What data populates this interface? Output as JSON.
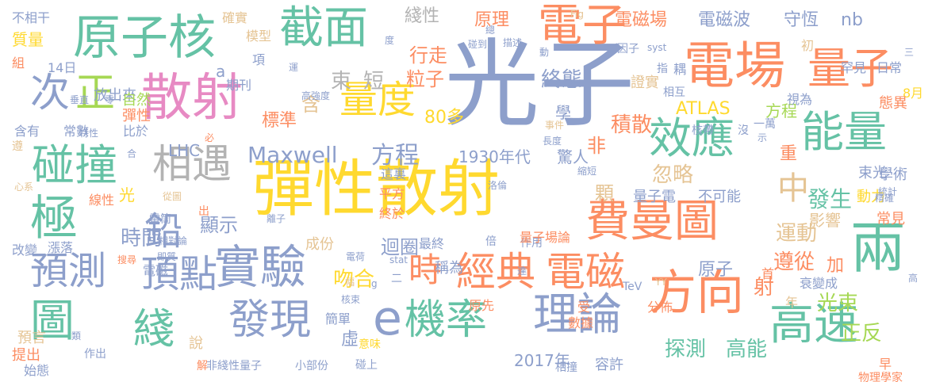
{
  "words": [
    {
      "text": "光子",
      "c": "#8d9fcb"
    },
    {
      "text": "彈性散射",
      "c": "#ffd92f"
    },
    {
      "text": "散射",
      "c": "#e78ac3"
    },
    {
      "text": "電場",
      "c": "#fc8d62"
    },
    {
      "text": "量子",
      "c": "#fc8d62"
    },
    {
      "text": "原子核",
      "c": "#65c2a5"
    },
    {
      "text": "截面",
      "c": "#65c2a5"
    },
    {
      "text": "電子",
      "c": "#fc8d62"
    },
    {
      "text": "費曼圖",
      "c": "#fc8d62"
    },
    {
      "text": "實驗",
      "c": "#8d9fcb"
    },
    {
      "text": "經典",
      "c": "#fc8d62"
    },
    {
      "text": "電磁",
      "c": "#fc8d62"
    },
    {
      "text": "效應",
      "c": "#65c2a5"
    },
    {
      "text": "能量",
      "c": "#65c2a5"
    },
    {
      "text": "兩",
      "c": "#65c2a5"
    },
    {
      "text": "方向",
      "c": "#fc8d62"
    },
    {
      "text": "理論",
      "c": "#8d9fcb"
    },
    {
      "text": "高速",
      "c": "#65c2a5"
    },
    {
      "text": "機率",
      "c": "#65c2a5"
    },
    {
      "text": "發現",
      "c": "#8d9fcb"
    },
    {
      "text": "預測",
      "c": "#8d9fcb"
    },
    {
      "text": "圖",
      "c": "#65c2a5"
    },
    {
      "text": "綫",
      "c": "#65c2a5"
    },
    {
      "text": "碰撞",
      "c": "#65c2a5"
    },
    {
      "text": "極",
      "c": "#65c2a5"
    },
    {
      "text": "次",
      "c": "#8d9fcb"
    },
    {
      "text": "正",
      "c": "#a6d854"
    },
    {
      "text": "相遇",
      "c": "#b3b3b3"
    },
    {
      "text": "鉛",
      "c": "#8d9fcb"
    },
    {
      "text": "頂點",
      "c": "#8d9fcb"
    },
    {
      "text": "量度",
      "c": "#ffd92f"
    },
    {
      "text": "Maxwell",
      "c": "#8d9fcb"
    },
    {
      "text": "方程",
      "c": "#8d9fcb"
    },
    {
      "text": "中",
      "c": "#e5c494"
    },
    {
      "text": "時",
      "c": "#fc8d62"
    },
    {
      "text": "e",
      "c": "#8d9fcb"
    },
    {
      "text": "電磁場",
      "c": "#fc8d62"
    },
    {
      "text": "電磁波",
      "c": "#8d9fcb"
    },
    {
      "text": "守恆",
      "c": "#8d9fcb"
    },
    {
      "text": "nb",
      "c": "#8d9fcb"
    },
    {
      "text": "綫性",
      "c": "#b3b3b3"
    },
    {
      "text": "原理",
      "c": "#fc8d62"
    },
    {
      "text": "行走",
      "c": "#fc8d62"
    },
    {
      "text": "粒子",
      "c": "#fc8d62"
    },
    {
      "text": "束",
      "c": "#b3b3b3"
    },
    {
      "text": "短",
      "c": "#b3b3b3"
    },
    {
      "text": "終態",
      "c": "#8d9fcb"
    },
    {
      "text": "ATLAS",
      "c": "#ffd92f"
    },
    {
      "text": "LHC",
      "c": "#8d9fcb"
    },
    {
      "text": "積散",
      "c": "#fc8d62"
    },
    {
      "text": "發生",
      "c": "#65c2a5"
    },
    {
      "text": "運動",
      "c": "#e5c494"
    },
    {
      "text": "遵從",
      "c": "#fc8d62"
    },
    {
      "text": "光束",
      "c": "#a6d854"
    },
    {
      "text": "正反",
      "c": "#a6d854"
    },
    {
      "text": "高能",
      "c": "#65c2a5"
    },
    {
      "text": "探測",
      "c": "#65c2a5"
    },
    {
      "text": "吻合",
      "c": "#ffd92f"
    },
    {
      "text": "時間",
      "c": "#8d9fcb"
    },
    {
      "text": "顯示",
      "c": "#8d9fcb"
    },
    {
      "text": "迴圈",
      "c": "#8d9fcb"
    },
    {
      "text": "忽略",
      "c": "#e5c494"
    },
    {
      "text": "1930年代",
      "c": "#8d9fcb"
    },
    {
      "text": "驚人",
      "c": "#8d9fcb"
    },
    {
      "text": "不相干",
      "c": "#8d9fcb"
    },
    {
      "text": "質量",
      "c": "#ffd92f"
    },
    {
      "text": "組",
      "c": "#fc8d62"
    },
    {
      "text": "14日",
      "c": "#8d9fcb"
    },
    {
      "text": "放出來",
      "c": "#8d9fcb"
    },
    {
      "text": "自然",
      "c": "#a6d854"
    },
    {
      "text": "彈性",
      "c": "#fc8d62"
    },
    {
      "text": "含有",
      "c": "#8d9fcb"
    },
    {
      "text": "常數",
      "c": "#8d9fcb"
    },
    {
      "text": "比於",
      "c": "#8d9fcb"
    },
    {
      "text": "期刊",
      "c": "#8d9fcb"
    },
    {
      "text": "模型",
      "c": "#e5c494"
    },
    {
      "text": "確實",
      "c": "#e5c494"
    },
    {
      "text": "項",
      "c": "#8d9fcb"
    },
    {
      "text": "含",
      "c": "#e5c494"
    },
    {
      "text": "標準",
      "c": "#fc8d62"
    },
    {
      "text": "80多",
      "c": "#ffd92f"
    },
    {
      "text": "證實",
      "c": "#e5c494"
    },
    {
      "text": "方程",
      "c": "#a6d854"
    },
    {
      "text": "8月",
      "c": "#ffd92f"
    },
    {
      "text": "日常",
      "c": "#8d9fcb"
    },
    {
      "text": "罕見",
      "c": "#8d9fcb"
    },
    {
      "text": "態異",
      "c": "#fc8d62"
    },
    {
      "text": "影響",
      "c": "#e5c494"
    },
    {
      "text": "束光",
      "c": "#8d9fcb"
    },
    {
      "text": "學術",
      "c": "#8d9fcb"
    },
    {
      "text": "不可能",
      "c": "#8d9fcb"
    },
    {
      "text": "量子電",
      "c": "#8d9fcb"
    },
    {
      "text": "顆",
      "c": "#e5c494"
    },
    {
      "text": "動力",
      "c": "#ffd92f"
    },
    {
      "text": "常見",
      "c": "#fc8d62"
    },
    {
      "text": "原子",
      "c": "#8d9fcb"
    },
    {
      "text": "首",
      "c": "#fc8d62"
    },
    {
      "text": "射",
      "c": "#fc8d62"
    },
    {
      "text": "加",
      "c": "#fc8d62"
    },
    {
      "text": "年",
      "c": "#e5c494"
    },
    {
      "text": "衰變成",
      "c": "#8d9fcb"
    },
    {
      "text": "2017年",
      "c": "#8d9fcb"
    },
    {
      "text": "容許",
      "c": "#8d9fcb"
    },
    {
      "text": "早",
      "c": "#fc8d62"
    },
    {
      "text": "物理學家",
      "c": "#fc8d62"
    },
    {
      "text": "預言",
      "c": "#e5c494"
    },
    {
      "text": "提出",
      "c": "#fc8d62"
    },
    {
      "text": "始態",
      "c": "#8d9fcb"
    },
    {
      "text": "說",
      "c": "#e5c494"
    },
    {
      "text": "線性",
      "c": "#fc8d62"
    },
    {
      "text": "光",
      "c": "#ffd92f"
    },
    {
      "text": "電磁",
      "c": "#8d9fcb"
    },
    {
      "text": "改變",
      "c": "#8d9fcb"
    },
    {
      "text": "漲落",
      "c": "#8d9fcb"
    },
    {
      "text": "成份",
      "c": "#e5c494"
    },
    {
      "text": "最終",
      "c": "#8d9fcb"
    },
    {
      "text": "稱為",
      "c": "#8d9fcb"
    },
    {
      "text": "作用",
      "c": "#8d9fcb"
    },
    {
      "text": "原先",
      "c": "#fc8d62"
    },
    {
      "text": "簡單",
      "c": "#8d9fcb"
    },
    {
      "text": "虛",
      "c": "#8d9fcb"
    },
    {
      "text": "意味",
      "c": "#ffd92f"
    },
    {
      "text": "碰上",
      "c": "#8d9fcb"
    },
    {
      "text": "非綫性量子",
      "c": "#8d9fcb"
    },
    {
      "text": "小部份",
      "c": "#8d9fcb"
    },
    {
      "text": "解",
      "c": "#fc8d62"
    },
    {
      "text": "終於",
      "c": "#fc8d62"
    },
    {
      "text": "平方",
      "c": "#fc8d62"
    },
    {
      "text": "這裏",
      "c": "#8d9fcb"
    },
    {
      "text": "量子場論",
      "c": "#fc8d62"
    },
    {
      "text": "數據",
      "c": "#fc8d62"
    },
    {
      "text": "受",
      "c": "#fc8d62"
    },
    {
      "text": "TeV",
      "c": "#8d9fcb"
    },
    {
      "text": "分佈",
      "c": "#fc8d62"
    },
    {
      "text": "相撞",
      "c": "#8d9fcb"
    },
    {
      "text": "非",
      "c": "#fc8d62"
    },
    {
      "text": "重",
      "c": "#fc8d62"
    },
    {
      "text": "學",
      "c": "#8d9fcb"
    },
    {
      "text": "指",
      "c": "#8d9fcb"
    },
    {
      "text": "耦",
      "c": "#8d9fcb"
    },
    {
      "text": "相互",
      "c": "#8d9fcb"
    },
    {
      "text": "初",
      "c": "#e5c494"
    },
    {
      "text": "視為",
      "c": "#8d9fcb"
    },
    {
      "text": "一萬",
      "c": "#8d9fcb"
    },
    {
      "text": "核帶",
      "c": "#8d9fcb"
    },
    {
      "text": "沒",
      "c": "#8d9fcb"
    },
    {
      "text": "因子",
      "c": "#8d9fcb"
    },
    {
      "text": "syst",
      "c": "#8d9fcb"
    },
    {
      "text": "Fig",
      "c": "#e5c494"
    },
    {
      "text": "總",
      "c": "#8d9fcb"
    },
    {
      "text": "碰到",
      "c": "#8d9fcb"
    },
    {
      "text": "描述",
      "c": "#8d9fcb"
    },
    {
      "text": "動",
      "c": "#8d9fcb"
    },
    {
      "text": "度",
      "c": "#8d9fcb"
    },
    {
      "text": "高強度",
      "c": "#8d9fcb"
    },
    {
      "text": "運",
      "c": "#8d9fcb"
    },
    {
      "text": "a",
      "c": "#8d9fcb"
    },
    {
      "text": "垂直",
      "c": "#8d9fcb"
    },
    {
      "text": "零",
      "c": "#8d9fcb"
    },
    {
      "text": "特性",
      "c": "#8d9fcb"
    },
    {
      "text": "合",
      "c": "#8d9fcb"
    },
    {
      "text": "必",
      "c": "#fc8d62"
    },
    {
      "text": "遵",
      "c": "#e5c494"
    },
    {
      "text": "心系",
      "c": "#e5c494"
    },
    {
      "text": "從圖",
      "c": "#e5c494"
    },
    {
      "text": "電筒",
      "c": "#8d9fcb"
    },
    {
      "text": "出",
      "c": "#fc8d62"
    },
    {
      "text": "相對論",
      "c": "#8d9fcb"
    },
    {
      "text": "搜尋",
      "c": "#fc8d62"
    },
    {
      "text": "即質",
      "c": "#8d9fcb"
    },
    {
      "text": "離子",
      "c": "#8d9fcb"
    },
    {
      "text": "電荷",
      "c": "#8d9fcb"
    },
    {
      "text": "stat",
      "c": "#8d9fcb"
    },
    {
      "text": "二",
      "c": "#8d9fcb"
    },
    {
      "text": "倍",
      "c": "#8d9fcb"
    },
    {
      "text": "幅",
      "c": "#e5c494"
    },
    {
      "text": "核束",
      "c": "#8d9fcb"
    },
    {
      "text": "類",
      "c": "#8d9fcb"
    },
    {
      "text": "作出",
      "c": "#8d9fcb"
    },
    {
      "text": "達",
      "c": "#8d9fcb"
    },
    {
      "text": "YY",
      "c": "#e5c494"
    },
    {
      "text": "事件",
      "c": "#e5c494"
    },
    {
      "text": "長度",
      "c": "#8d9fcb"
    },
    {
      "text": "縮短",
      "c": "#8d9fcb"
    },
    {
      "text": "洛倫",
      "c": "#8d9fcb"
    },
    {
      "text": "統計",
      "c": "#8d9fcb"
    },
    {
      "text": "精確",
      "c": "#8d9fcb"
    },
    {
      "text": "高",
      "c": "#8d9fcb"
    },
    {
      "text": "示",
      "c": "#8d9fcb"
    },
    {
      "text": "三",
      "c": "#8d9fcb"
    },
    {
      "text": "g",
      "c": "#8d9fcb"
    }
  ]
}
